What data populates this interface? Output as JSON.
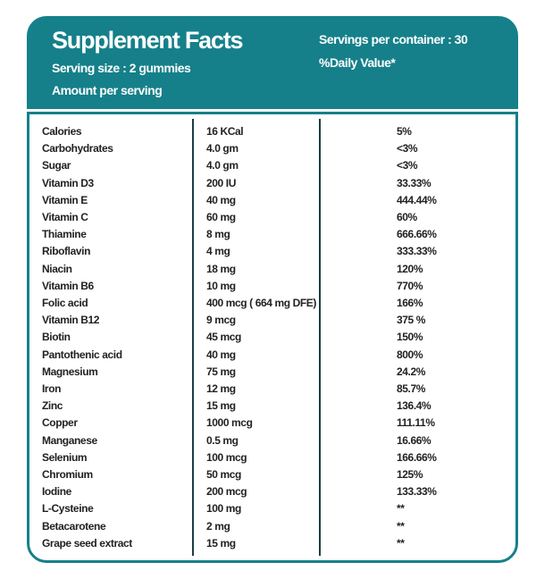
{
  "header": {
    "title": "Supplement Facts",
    "serving_size": "Serving size : 2 gummies",
    "amount_per_serving": "Amount per serving",
    "servings_per_container": "Servings per container : 30",
    "daily_value": "%Daily Value*"
  },
  "table": {
    "rows": [
      [
        "Calories",
        "16 KCal",
        "5%"
      ],
      [
        "Carbohydrates",
        "4.0 gm",
        "<3%"
      ],
      [
        "Sugar",
        "4.0 gm",
        "<3%"
      ],
      [
        "Vitamin D3",
        "200 IU",
        "33.33%"
      ],
      [
        "Vitamin E",
        "40 mg",
        "444.44%"
      ],
      [
        "Vitamin C",
        "60 mg",
        "60%"
      ],
      [
        "Thiamine",
        "8 mg",
        "666.66%"
      ],
      [
        "Riboflavin",
        "4 mg",
        "333.33%"
      ],
      [
        "Niacin",
        "18 mg",
        "120%"
      ],
      [
        "Vitamin B6",
        "10 mg",
        "770%"
      ],
      [
        "Folic acid",
        "400 mcg ( 664 mg DFE)",
        "166%"
      ],
      [
        "Vitamin B12",
        "9 mcg",
        "375 %"
      ],
      [
        "Biotin",
        "45 mcg",
        "150%"
      ],
      [
        "Pantothenic acid",
        "40 mg",
        "800%"
      ],
      [
        "Magnesium",
        "75 mg",
        "24.2%"
      ],
      [
        "Iron",
        "12 mg",
        "85.7%"
      ],
      [
        "Zinc",
        "15 mg",
        "136.4%"
      ],
      [
        "Copper",
        "1000 mcg",
        "111.11%"
      ],
      [
        "Manganese",
        "0.5 mg",
        "16.66%"
      ],
      [
        "Selenium",
        "100 mcg",
        "166.66%"
      ],
      [
        "Chromium",
        "50 mcg",
        "125%"
      ],
      [
        "Iodine",
        "200 mcg",
        "133.33%"
      ],
      [
        "L-Cysteine",
        "100 mg",
        "**"
      ],
      [
        "Betacarotene",
        "2 mg",
        "**"
      ],
      [
        "Grape seed extract",
        "15 mg",
        "**"
      ]
    ]
  }
}
